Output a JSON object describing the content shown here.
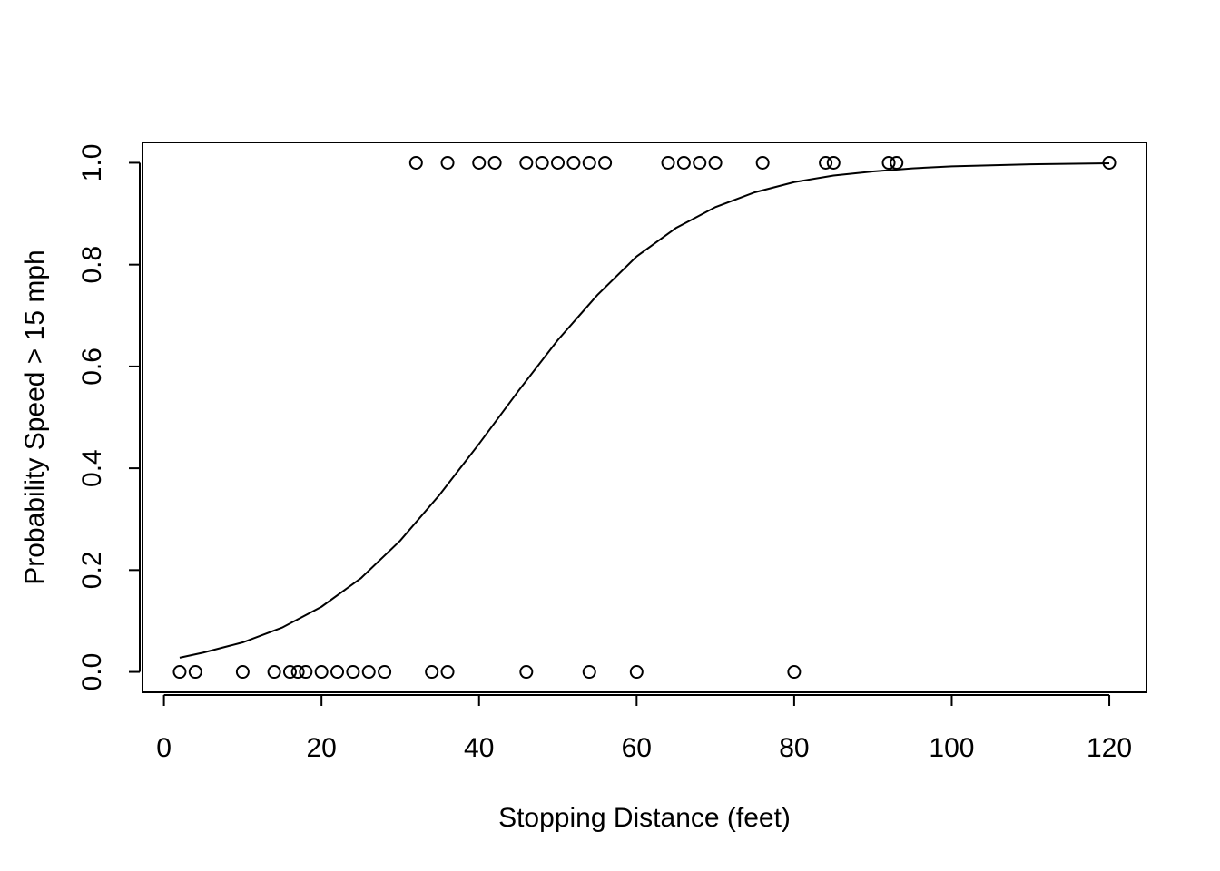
{
  "chart_data": {
    "type": "scatter",
    "title": "",
    "xlabel": "Stopping Distance (feet)",
    "ylabel": "Probability Speed > 15 mph",
    "xlim": [
      -2.72,
      124.72
    ],
    "ylim": [
      -0.04,
      1.04
    ],
    "xticks": [
      0,
      20,
      40,
      60,
      80,
      100,
      120
    ],
    "yticks": [
      0.0,
      0.2,
      0.4,
      0.6,
      0.8,
      1.0
    ],
    "xtick_labels": [
      "0",
      "20",
      "40",
      "60",
      "80",
      "100",
      "120"
    ],
    "ytick_labels": [
      "0.0",
      "0.2",
      "0.4",
      "0.6",
      "0.8",
      "1.0"
    ],
    "grid": false,
    "legend": "none",
    "points": {
      "x": [
        2,
        4,
        10,
        14,
        16,
        17,
        18,
        20,
        22,
        24,
        26,
        28,
        34,
        36,
        46,
        54,
        60,
        80,
        32,
        36,
        40,
        42,
        46,
        48,
        50,
        52,
        54,
        56,
        64,
        66,
        68,
        70,
        76,
        84,
        85,
        92,
        93,
        120
      ],
      "y": [
        0,
        0,
        0,
        0,
        0,
        0,
        0,
        0,
        0,
        0,
        0,
        0,
        0,
        0,
        0,
        0,
        0,
        0,
        1,
        1,
        1,
        1,
        1,
        1,
        1,
        1,
        1,
        1,
        1,
        1,
        1,
        1,
        1,
        1,
        1,
        1,
        1,
        1
      ]
    },
    "fitted_curve": {
      "type": "line",
      "x": [
        2,
        5,
        10,
        15,
        20,
        25,
        30,
        35,
        40,
        45,
        50,
        55,
        60,
        65,
        70,
        75,
        80,
        85,
        90,
        95,
        100,
        110,
        120
      ],
      "y": [
        0.028,
        0.038,
        0.058,
        0.087,
        0.128,
        0.184,
        0.258,
        0.348,
        0.448,
        0.552,
        0.652,
        0.74,
        0.816,
        0.872,
        0.913,
        0.942,
        0.962,
        0.975,
        0.983,
        0.989,
        0.993,
        0.997,
        0.999
      ]
    }
  }
}
